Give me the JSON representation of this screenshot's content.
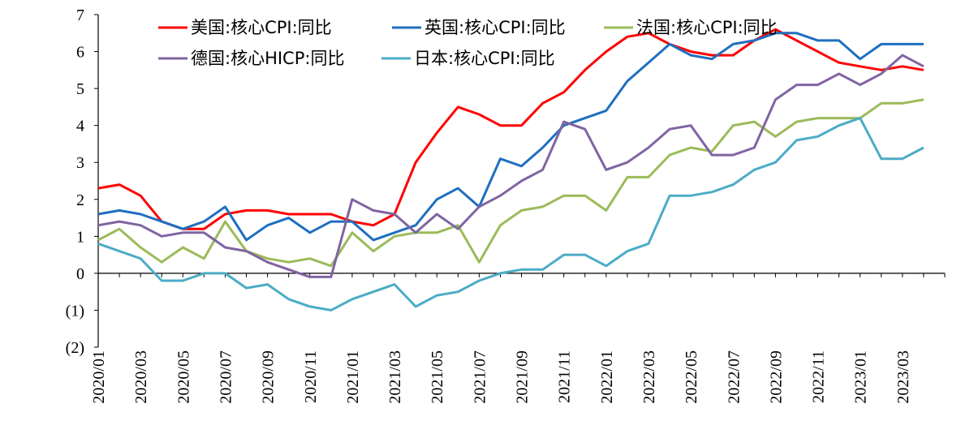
{
  "chart_data": {
    "type": "line",
    "title": "",
    "xlabel": "",
    "ylabel": "",
    "ylim": [
      -2,
      7
    ],
    "y_ticks": [
      {
        "value": 7,
        "label": "7",
        "color": "#000000"
      },
      {
        "value": 6,
        "label": "6",
        "color": "#000000"
      },
      {
        "value": 5,
        "label": "5",
        "color": "#000000"
      },
      {
        "value": 4,
        "label": "4",
        "color": "#000000"
      },
      {
        "value": 3,
        "label": "3",
        "color": "#000000"
      },
      {
        "value": 2,
        "label": "2",
        "color": "#000000"
      },
      {
        "value": 1,
        "label": "1",
        "color": "#000000"
      },
      {
        "value": 0,
        "label": "0",
        "color": "#000000"
      },
      {
        "value": -1,
        "label": "(1)",
        "color": "#ff0000"
      },
      {
        "value": -2,
        "label": "(2)",
        "color": "#ff0000"
      }
    ],
    "x": [
      "2020/01",
      "2020/02",
      "2020/03",
      "2020/04",
      "2020/05",
      "2020/06",
      "2020/07",
      "2020/08",
      "2020/09",
      "2020/10",
      "2020/11",
      "2020/12",
      "2021/01",
      "2021/02",
      "2021/03",
      "2021/04",
      "2021/05",
      "2021/06",
      "2021/07",
      "2021/08",
      "2021/09",
      "2021/10",
      "2021/11",
      "2021/12",
      "2022/01",
      "2022/02",
      "2022/03",
      "2022/04",
      "2022/05",
      "2022/06",
      "2022/07",
      "2022/08",
      "2022/09",
      "2022/10",
      "2022/11",
      "2022/12",
      "2023/01",
      "2023/02",
      "2023/03",
      "2023/04"
    ],
    "x_tick_labels": [
      "2020/01",
      "2020/03",
      "2020/05",
      "2020/07",
      "2020/09",
      "2020/11",
      "2021/01",
      "2021/03",
      "2021/05",
      "2021/07",
      "2021/09",
      "2021/11",
      "2022/01",
      "2022/03",
      "2022/05",
      "2022/07",
      "2022/09",
      "2022/11",
      "2023/01",
      "2023/03"
    ],
    "legend_placement": "top",
    "grid": false,
    "series": [
      {
        "name": "美国:核心CPI:同比",
        "color": "#ff0000",
        "values": [
          2.3,
          2.4,
          2.1,
          1.4,
          1.2,
          1.2,
          1.6,
          1.7,
          1.7,
          1.6,
          1.6,
          1.6,
          1.4,
          1.3,
          1.6,
          3.0,
          3.8,
          4.5,
          4.3,
          4.0,
          4.0,
          4.6,
          4.9,
          5.5,
          6.0,
          6.4,
          6.5,
          6.2,
          6.0,
          5.9,
          5.9,
          6.3,
          6.6,
          6.3,
          6.0,
          5.7,
          5.6,
          5.5,
          5.6,
          5.5
        ]
      },
      {
        "name": "英国:核心CPI:同比",
        "color": "#1f6fbf",
        "values": [
          1.6,
          1.7,
          1.6,
          1.4,
          1.2,
          1.4,
          1.8,
          0.9,
          1.3,
          1.5,
          1.1,
          1.4,
          1.4,
          0.9,
          1.1,
          1.3,
          2.0,
          2.3,
          1.8,
          3.1,
          2.9,
          3.4,
          4.0,
          4.2,
          4.4,
          5.2,
          5.7,
          6.2,
          5.9,
          5.8,
          6.2,
          6.3,
          6.5,
          6.5,
          6.3,
          6.3,
          5.8,
          6.2,
          6.2,
          6.2
        ]
      },
      {
        "name": "法国:核心CPI:同比",
        "color": "#9bbb59",
        "values": [
          0.9,
          1.2,
          0.7,
          0.3,
          0.7,
          0.4,
          1.4,
          0.6,
          0.4,
          0.3,
          0.4,
          0.2,
          1.1,
          0.6,
          1.0,
          1.1,
          1.1,
          1.3,
          0.3,
          1.3,
          1.7,
          1.8,
          2.1,
          2.1,
          1.7,
          2.6,
          2.6,
          3.2,
          3.4,
          3.3,
          4.0,
          4.1,
          3.7,
          4.1,
          4.2,
          4.2,
          4.2,
          4.6,
          4.6,
          4.7
        ]
      },
      {
        "name": "德国:核心HICP:同比",
        "color": "#8064a2",
        "values": [
          1.3,
          1.4,
          1.3,
          1.0,
          1.1,
          1.1,
          0.7,
          0.6,
          0.3,
          0.1,
          -0.1,
          -0.1,
          2.0,
          1.7,
          1.6,
          1.1,
          1.6,
          1.2,
          1.8,
          2.1,
          2.5,
          2.8,
          4.1,
          3.9,
          2.8,
          3.0,
          3.4,
          3.9,
          4.0,
          3.2,
          3.2,
          3.4,
          4.7,
          5.1,
          5.1,
          5.4,
          5.1,
          5.4,
          5.9,
          5.6
        ]
      },
      {
        "name": "日本:核心CPI:同比",
        "color": "#4bacc6",
        "values": [
          0.8,
          0.6,
          0.4,
          -0.2,
          -0.2,
          0.0,
          0.0,
          -0.4,
          -0.3,
          -0.7,
          -0.9,
          -1.0,
          -0.7,
          -0.5,
          -0.3,
          -0.9,
          -0.6,
          -0.5,
          -0.2,
          0.0,
          0.1,
          0.1,
          0.5,
          0.5,
          0.2,
          0.6,
          0.8,
          2.1,
          2.1,
          2.2,
          2.4,
          2.8,
          3.0,
          3.6,
          3.7,
          4.0,
          4.2,
          3.1,
          3.1,
          3.4
        ]
      }
    ]
  }
}
